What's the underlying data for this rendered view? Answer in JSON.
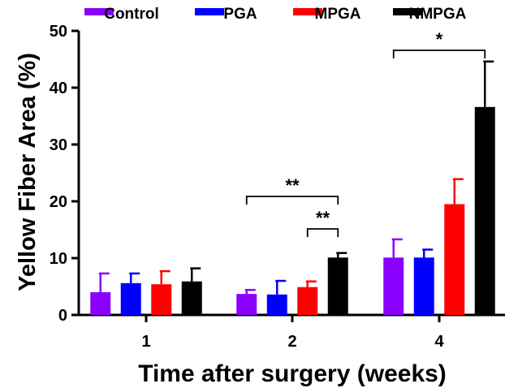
{
  "chart_data": {
    "type": "bar",
    "title": "",
    "xlabel": "Time after surgery (weeks)",
    "ylabel": "Yellow Fiber Area (%)",
    "ylim": [
      0,
      50
    ],
    "yticks": [
      "0",
      "10",
      "20",
      "30",
      "40",
      "50"
    ],
    "categories": [
      "1",
      "2",
      "4"
    ],
    "legend_position": "top",
    "grid": false,
    "series": [
      {
        "name": "Control",
        "color": "#8a00ff",
        "values": [
          4.0,
          3.7,
          10.1
        ],
        "errors": [
          3.3,
          0.7,
          3.2
        ]
      },
      {
        "name": "PGA",
        "color": "#0000ff",
        "values": [
          5.6,
          3.6,
          10.1
        ],
        "errors": [
          1.7,
          2.4,
          1.4
        ]
      },
      {
        "name": "MPGA",
        "color": "#ff0000",
        "values": [
          5.4,
          4.9,
          19.5
        ],
        "errors": [
          2.3,
          1.0,
          4.4
        ]
      },
      {
        "name": "NMPGA",
        "color": "#000000",
        "values": [
          5.9,
          10.1,
          36.6
        ],
        "errors": [
          2.3,
          0.8,
          8.0
        ]
      }
    ],
    "significance": [
      {
        "category": "2",
        "from_series": "Control",
        "to_series": "NMPGA",
        "label": "**"
      },
      {
        "category": "2",
        "from_series": "MPGA",
        "to_series": "NMPGA",
        "label": "**"
      },
      {
        "category": "4",
        "from_series": "Control",
        "to_series": "NMPGA",
        "label": "*"
      }
    ]
  }
}
